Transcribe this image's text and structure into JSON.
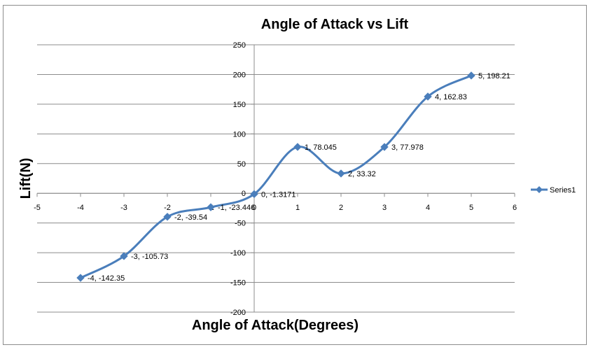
{
  "chart_data": {
    "type": "line",
    "title": "Angle of Attack vs Lift",
    "xlabel": "Angle of Attack(Degrees)",
    "ylabel": "Lift(N)",
    "xlim": [
      -5,
      6
    ],
    "ylim": [
      -200,
      250
    ],
    "x_ticks": [
      "-5",
      "-4",
      "-3",
      "-2",
      "-1",
      "0",
      "1",
      "2",
      "3",
      "4",
      "5",
      "6"
    ],
    "y_ticks": [
      "250",
      "200",
      "150",
      "100",
      "50",
      "0",
      "-50",
      "-100",
      "-150",
      "-200"
    ],
    "grid": "horizontal",
    "smooth": true,
    "legend_position": "right",
    "series": [
      {
        "name": "Series1",
        "color": "#4a7ebb",
        "x": [
          -4,
          -3,
          -2,
          -1,
          0,
          1,
          2,
          3,
          4,
          5
        ],
        "y": [
          -142.35,
          -105.73,
          -39.54,
          -23.446,
          -1.3171,
          78.045,
          33.32,
          77.978,
          162.83,
          198.21
        ],
        "labels": [
          "-4, -142.35",
          "-3, -105.73",
          "-2, -39.54",
          "-1, -23.446",
          "0, -1.3171",
          "1, 78.045",
          "2, 33.32",
          "3, 77.978",
          "4, 162.83",
          "5, 198.21"
        ]
      }
    ]
  }
}
